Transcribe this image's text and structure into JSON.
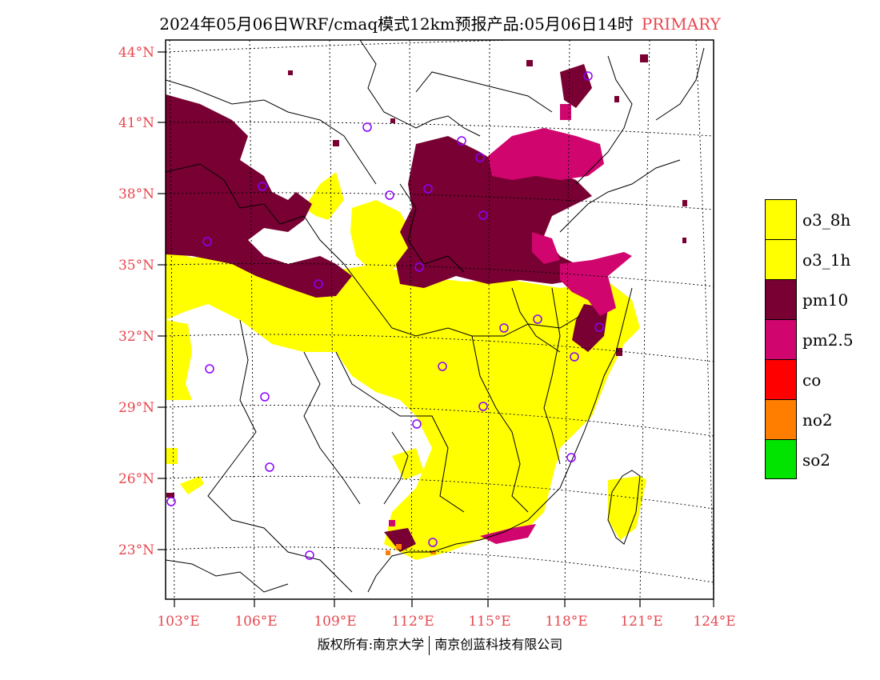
{
  "title": {
    "main": "2024年05月06日WRF/cmaq模式12km预报产品:05月06日14时",
    "tag": "PRIMARY"
  },
  "axes": {
    "lat_labels": [
      "44°N",
      "41°N",
      "38°N",
      "35°N",
      "32°N",
      "29°N",
      "26°N",
      "23°N"
    ],
    "lon_labels": [
      "103°E",
      "106°E",
      "109°E",
      "112°E",
      "115°E",
      "118°E",
      "121°E",
      "124°E"
    ]
  },
  "legend": [
    {
      "label": "o3_8h",
      "color": "#ffff00"
    },
    {
      "label": "o3_1h",
      "color": "#ffff00"
    },
    {
      "label": "pm10",
      "color": "#780032"
    },
    {
      "label": "pm2.5",
      "color": "#d0056e"
    },
    {
      "label": "co",
      "color": "#ff0000"
    },
    {
      "label": "no2",
      "color": "#ff7e00"
    },
    {
      "label": "so2",
      "color": "#00e400"
    }
  ],
  "copyright": {
    "left": "版权所有:南京大学",
    "right": "南京创蓝科技有限公司"
  }
}
